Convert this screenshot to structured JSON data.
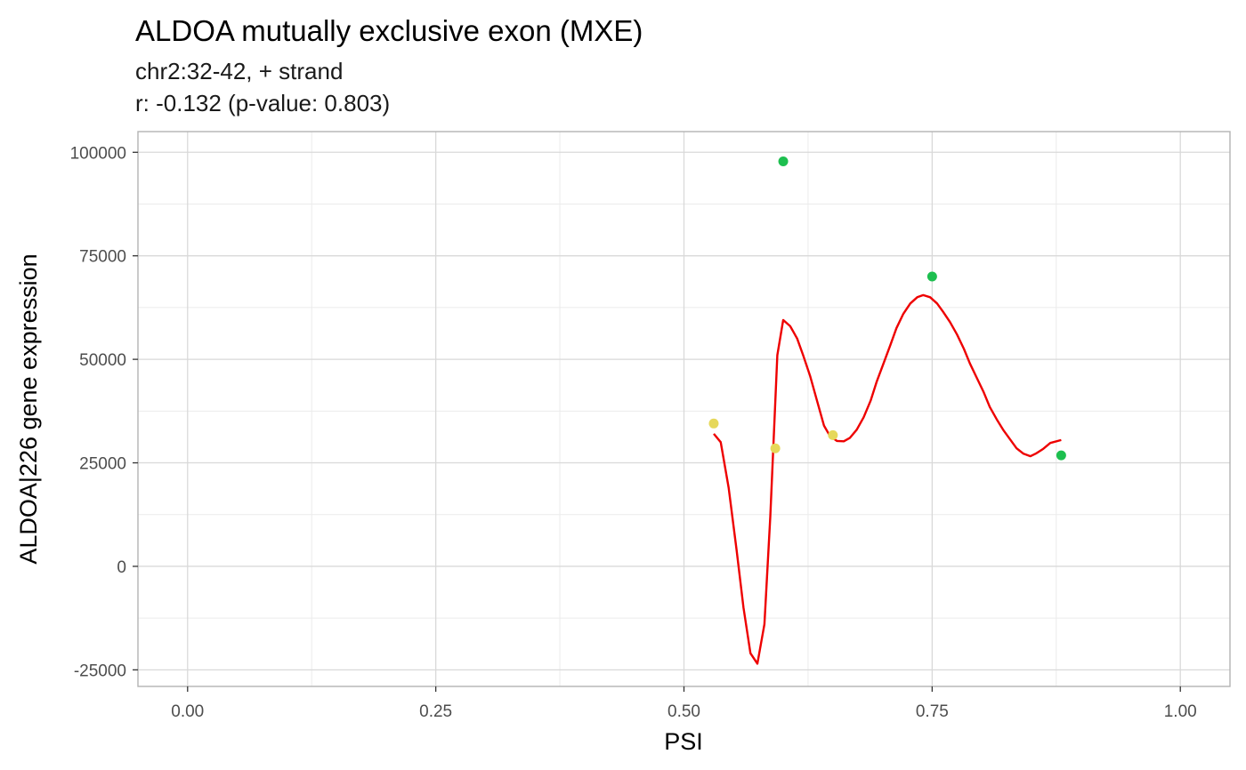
{
  "chart_data": {
    "type": "scatter",
    "title": "ALDOA mutually exclusive exon (MXE)",
    "subtitle_lines": [
      "chr2:32-42, + strand",
      "r: -0.132 (p-value: 0.803)"
    ],
    "xlabel": "PSI",
    "ylabel": "ALDOA|226 gene expression",
    "xlim": [
      -0.05,
      1.05
    ],
    "ylim": [
      -29000,
      105000
    ],
    "x_ticks": [
      0,
      0.25,
      0.5,
      0.75,
      1
    ],
    "x_tick_labels": [
      "0.00",
      "0.25",
      "0.50",
      "0.75",
      "1.00"
    ],
    "y_ticks": [
      -25000,
      0,
      25000,
      50000,
      75000,
      100000
    ],
    "y_tick_labels": [
      "-25000",
      "0",
      "25000",
      "50000",
      "75000",
      "100000"
    ],
    "grid": true,
    "points": [
      {
        "x": 0.53,
        "y": 34500,
        "color": "#E6D85A"
      },
      {
        "x": 0.592,
        "y": 28500,
        "color": "#E6D85A"
      },
      {
        "x": 0.65,
        "y": 31700,
        "color": "#E6D85A"
      },
      {
        "x": 0.6,
        "y": 97800,
        "color": "#1DBF4F"
      },
      {
        "x": 0.75,
        "y": 70000,
        "color": "#1DBF4F"
      },
      {
        "x": 0.88,
        "y": 26800,
        "color": "#1DBF4F"
      }
    ],
    "fit_line": {
      "color": "#EE0000",
      "x": [
        0.53,
        0.537,
        0.545,
        0.553,
        0.56,
        0.567,
        0.574,
        0.581,
        0.587,
        0.594,
        0.6,
        0.607,
        0.614,
        0.62,
        0.627,
        0.634,
        0.641,
        0.647,
        0.654,
        0.661,
        0.667,
        0.674,
        0.681,
        0.688,
        0.694,
        0.701,
        0.708,
        0.714,
        0.721,
        0.728,
        0.735,
        0.741,
        0.748,
        0.755,
        0.761,
        0.768,
        0.775,
        0.782,
        0.788,
        0.795,
        0.802,
        0.808,
        0.815,
        0.822,
        0.829,
        0.835,
        0.842,
        0.849,
        0.855,
        0.862,
        0.869,
        0.88
      ],
      "y": [
        32000,
        30000,
        19000,
        4000,
        -10000,
        -21000,
        -23500,
        -14000,
        12000,
        51000,
        59500,
        58000,
        55000,
        51000,
        46000,
        40000,
        34000,
        31500,
        30300,
        30200,
        31000,
        33000,
        36000,
        40000,
        44500,
        49000,
        53500,
        57500,
        61000,
        63500,
        65000,
        65500,
        65000,
        63500,
        61500,
        59000,
        56000,
        52500,
        49000,
        45500,
        42000,
        38500,
        35500,
        32800,
        30500,
        28500,
        27200,
        26600,
        27300,
        28400,
        29800,
        30500
      ]
    }
  }
}
